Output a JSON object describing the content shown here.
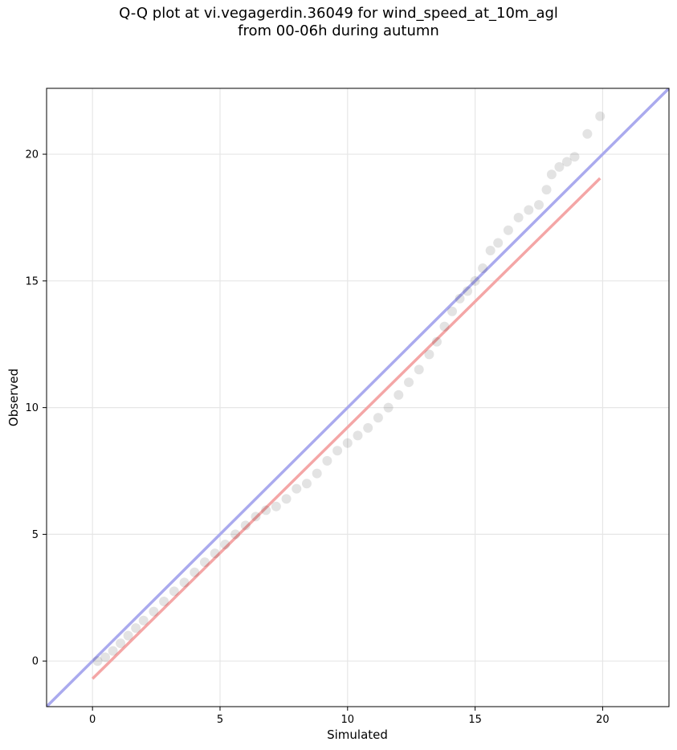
{
  "chart_data": {
    "type": "scatter",
    "title_line1": "Q-Q plot at vi.vegagerdin.36049 for wind_speed_at_10m_agl",
    "title_line2": "from 00-06h during autumn",
    "xlabel": "Simulated",
    "ylabel": "Observed",
    "xlim": [
      -1.8,
      22.6
    ],
    "ylim": [
      -1.8,
      22.6
    ],
    "xticks": [
      0,
      5,
      10,
      15,
      20
    ],
    "yticks": [
      0,
      5,
      10,
      15,
      20
    ],
    "grid": true,
    "reference_line": {
      "slope": 1,
      "intercept": 0,
      "color": "#aaaaee"
    },
    "fit_line": {
      "x": [
        0.0,
        19.9
      ],
      "y": [
        -0.7,
        19.05
      ],
      "color": "#f4a6a6"
    },
    "points_color": "#000000",
    "points": [
      {
        "x": 0.2,
        "y": 0.0
      },
      {
        "x": 0.5,
        "y": 0.15
      },
      {
        "x": 0.8,
        "y": 0.4
      },
      {
        "x": 1.1,
        "y": 0.7
      },
      {
        "x": 1.4,
        "y": 1.0
      },
      {
        "x": 1.7,
        "y": 1.3
      },
      {
        "x": 2.0,
        "y": 1.6
      },
      {
        "x": 2.4,
        "y": 1.95
      },
      {
        "x": 2.8,
        "y": 2.35
      },
      {
        "x": 3.2,
        "y": 2.75
      },
      {
        "x": 3.6,
        "y": 3.1
      },
      {
        "x": 4.0,
        "y": 3.5
      },
      {
        "x": 4.4,
        "y": 3.9
      },
      {
        "x": 4.8,
        "y": 4.25
      },
      {
        "x": 5.2,
        "y": 4.6
      },
      {
        "x": 5.6,
        "y": 5.0
      },
      {
        "x": 6.0,
        "y": 5.35
      },
      {
        "x": 6.4,
        "y": 5.7
      },
      {
        "x": 6.8,
        "y": 5.95
      },
      {
        "x": 7.2,
        "y": 6.1
      },
      {
        "x": 7.6,
        "y": 6.4
      },
      {
        "x": 8.0,
        "y": 6.8
      },
      {
        "x": 8.4,
        "y": 7.0
      },
      {
        "x": 8.8,
        "y": 7.4
      },
      {
        "x": 9.2,
        "y": 7.9
      },
      {
        "x": 9.6,
        "y": 8.3
      },
      {
        "x": 10.0,
        "y": 8.6
      },
      {
        "x": 10.4,
        "y": 8.9
      },
      {
        "x": 10.8,
        "y": 9.2
      },
      {
        "x": 11.2,
        "y": 9.6
      },
      {
        "x": 11.6,
        "y": 10.0
      },
      {
        "x": 12.0,
        "y": 10.5
      },
      {
        "x": 12.4,
        "y": 11.0
      },
      {
        "x": 12.8,
        "y": 11.5
      },
      {
        "x": 13.2,
        "y": 12.1
      },
      {
        "x": 13.5,
        "y": 12.6
      },
      {
        "x": 13.8,
        "y": 13.2
      },
      {
        "x": 14.1,
        "y": 13.8
      },
      {
        "x": 14.4,
        "y": 14.3
      },
      {
        "x": 14.7,
        "y": 14.6
      },
      {
        "x": 15.0,
        "y": 15.0
      },
      {
        "x": 15.3,
        "y": 15.5
      },
      {
        "x": 15.6,
        "y": 16.2
      },
      {
        "x": 15.9,
        "y": 16.5
      },
      {
        "x": 16.3,
        "y": 17.0
      },
      {
        "x": 16.7,
        "y": 17.5
      },
      {
        "x": 17.1,
        "y": 17.8
      },
      {
        "x": 17.5,
        "y": 18.0
      },
      {
        "x": 17.8,
        "y": 18.6
      },
      {
        "x": 18.0,
        "y": 19.2
      },
      {
        "x": 18.3,
        "y": 19.5
      },
      {
        "x": 18.6,
        "y": 19.7
      },
      {
        "x": 18.9,
        "y": 19.9
      },
      {
        "x": 19.4,
        "y": 20.8
      },
      {
        "x": 19.9,
        "y": 21.5
      }
    ]
  }
}
